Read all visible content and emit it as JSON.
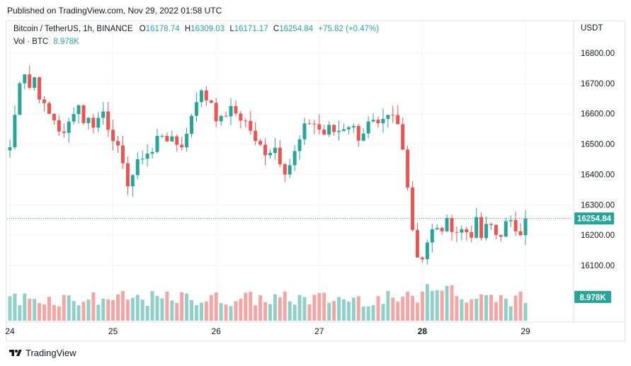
{
  "published": "Published on TradingView.com, Nov 29, 2022 01:58 UTC",
  "footer": {
    "brand": "TradingView",
    "logo_icon": "tradingview-logo-icon"
  },
  "header": {
    "symbol": "Bitcoin / TetherUS, 1h, BINANCE",
    "open_label": "O",
    "open": "16178.74",
    "high_label": "H",
    "high": "16309.03",
    "low_label": "L",
    "low": "16171.17",
    "close_label": "C",
    "close": "16254.84",
    "change": "+75.82 (+0.47%)"
  },
  "volume_legend": {
    "label": "Vol · BTC",
    "value": "8.978K"
  },
  "colors": {
    "up": "#26a69a",
    "down": "#ef5350",
    "up_vol": "#8fd0c8",
    "down_vol": "#f5a6a4"
  },
  "chart_data": {
    "type": "candlestick",
    "symbol": "Bitcoin / TetherUS",
    "interval": "1h",
    "exchange": "BINANCE",
    "currency": "USDT",
    "ylim": [
      16050,
      16850
    ],
    "y_ticks": [
      16800,
      16700,
      16600,
      16500,
      16400,
      16300,
      16200,
      16100
    ],
    "y_tick_labels": [
      "16800.00",
      "16700.00",
      "16600.00",
      "16500.00",
      "16400.00",
      "16300.00",
      "16200.00",
      "16100.00"
    ],
    "x_tick_labels": [
      {
        "label": "24",
        "index": 0,
        "bold": false
      },
      {
        "label": "25",
        "index": 21,
        "bold": false
      },
      {
        "label": "26",
        "index": 42,
        "bold": false
      },
      {
        "label": "27",
        "index": 63,
        "bold": false
      },
      {
        "label": "28",
        "index": 84,
        "bold": true
      },
      {
        "label": "29",
        "index": 105,
        "bold": false
      }
    ],
    "last_price": 16254.84,
    "last_price_label": "16254.84",
    "volume_label": "8.978K",
    "anchor_closes": [
      [
        0,
        16490
      ],
      [
        1,
        16620
      ],
      [
        2,
        16780
      ],
      [
        3,
        16680
      ],
      [
        4,
        16720
      ],
      [
        5,
        16650
      ],
      [
        6,
        16600
      ],
      [
        7,
        16590
      ],
      [
        8,
        16550
      ],
      [
        9,
        16520
      ],
      [
        10,
        16600
      ],
      [
        11,
        16640
      ],
      [
        12,
        16580
      ],
      [
        13,
        16580
      ],
      [
        14,
        16560
      ],
      [
        15,
        16620
      ],
      [
        16,
        16560
      ],
      [
        17,
        16520
      ],
      [
        18,
        16450
      ],
      [
        19,
        16370
      ],
      [
        20,
        16400
      ],
      [
        21,
        16440
      ],
      [
        22,
        16480
      ],
      [
        23,
        16460
      ],
      [
        24,
        16520
      ],
      [
        25,
        16540
      ],
      [
        26,
        16510
      ],
      [
        27,
        16500
      ],
      [
        28,
        16500
      ],
      [
        29,
        16540
      ],
      [
        30,
        16640
      ],
      [
        31,
        16670
      ],
      [
        32,
        16650
      ],
      [
        33,
        16640
      ],
      [
        34,
        16560
      ],
      [
        35,
        16600
      ],
      [
        36,
        16610
      ],
      [
        37,
        16600
      ],
      [
        38,
        16580
      ],
      [
        39,
        16560
      ],
      [
        40,
        16500
      ],
      [
        41,
        16490
      ],
      [
        42,
        16470
      ],
      [
        43,
        16500
      ],
      [
        44,
        16450
      ],
      [
        45,
        16410
      ],
      [
        46,
        16450
      ],
      [
        47,
        16500
      ],
      [
        48,
        16550
      ],
      [
        49,
        16580
      ],
      [
        50,
        16560
      ],
      [
        51,
        16530
      ],
      [
        52,
        16550
      ],
      [
        53,
        16540
      ],
      [
        54,
        16550
      ],
      [
        55,
        16570
      ],
      [
        56,
        16550
      ],
      [
        57,
        16520
      ],
      [
        58,
        16560
      ],
      [
        59,
        16570
      ],
      [
        60,
        16550
      ],
      [
        61,
        16570
      ],
      [
        62,
        16590
      ],
      [
        63,
        16580
      ],
      [
        64,
        16480
      ],
      [
        65,
        16350
      ],
      [
        66,
        16140
      ],
      [
        67,
        16120
      ],
      [
        68,
        16180
      ],
      [
        69,
        16220
      ],
      [
        70,
        16210
      ],
      [
        71,
        16240
      ],
      [
        72,
        16230
      ],
      [
        73,
        16210
      ],
      [
        74,
        16220
      ],
      [
        75,
        16200
      ],
      [
        76,
        16240
      ],
      [
        77,
        16180
      ],
      [
        78,
        16250
      ],
      [
        79,
        16200
      ],
      [
        80,
        16210
      ],
      [
        81,
        16240
      ],
      [
        82,
        16230
      ],
      [
        83,
        16210
      ],
      [
        84,
        16255
      ]
    ]
  }
}
